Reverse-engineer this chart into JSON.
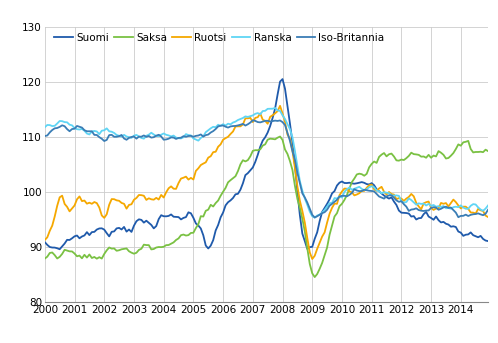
{
  "ylim": [
    80,
    130
  ],
  "yticks": [
    80,
    90,
    100,
    110,
    120,
    130
  ],
  "xtick_labels": [
    "2000",
    "2001",
    "2002",
    "2003",
    "2004",
    "2005",
    "2006",
    "2007",
    "2008",
    "2009",
    "2010",
    "2011",
    "2012",
    "2013",
    "2014"
  ],
  "xtick_positions": [
    0,
    12,
    24,
    36,
    48,
    60,
    72,
    84,
    96,
    108,
    120,
    132,
    144,
    156,
    168
  ],
  "series_names": [
    "Suomi",
    "Saksa",
    "Ruotsi",
    "Ranska",
    "Iso-Britannia"
  ],
  "series_colors": [
    "#1f5aab",
    "#7ac143",
    "#f5a800",
    "#5fd5f5",
    "#3a7db5"
  ],
  "line_widths": [
    1.3,
    1.3,
    1.3,
    1.3,
    1.3
  ],
  "background_color": "#ffffff",
  "grid_color": "#cccccc",
  "legend_fontsize": 7.5,
  "tick_fontsize": 7.5,
  "figsize": [
    4.98,
    3.43
  ],
  "dpi": 100
}
